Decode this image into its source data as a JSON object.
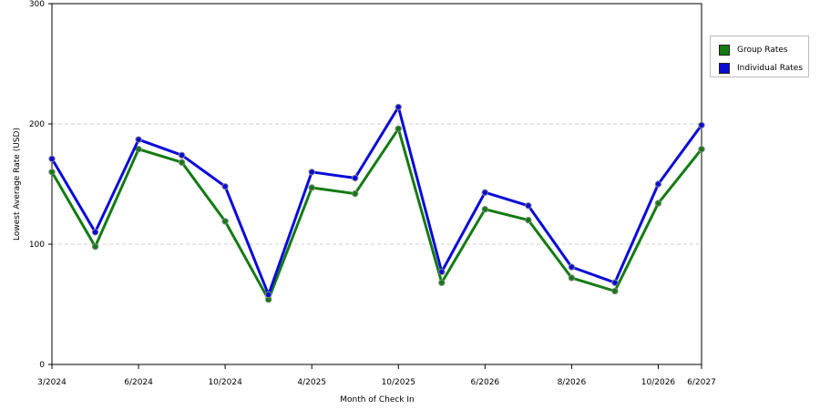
{
  "chart_data": {
    "type": "line",
    "xlabel": "Month of Check In",
    "ylabel": "Lowest Average Rate (USD)",
    "ylim": [
      0,
      300
    ],
    "yticks": [
      0,
      100,
      200,
      300
    ],
    "grid": "horizontal dashed",
    "legend_position": "right",
    "x_tick_labels": [
      {
        "index": 0,
        "label": "3/2024"
      },
      {
        "index": 2,
        "label": "6/2024"
      },
      {
        "index": 4,
        "label": "10/2024"
      },
      {
        "index": 6,
        "label": "4/2025"
      },
      {
        "index": 8,
        "label": "10/2025"
      },
      {
        "index": 10,
        "label": "6/2026"
      },
      {
        "index": 12,
        "label": "8/2026"
      },
      {
        "index": 14,
        "label": "10/2026"
      },
      {
        "index": 15,
        "label": "6/2027"
      }
    ],
    "point_count": 16,
    "series": [
      {
        "name": "Group Rates",
        "color": "#137b13",
        "values": [
          160,
          98,
          179,
          168,
          119,
          54,
          147,
          142,
          196,
          68,
          129,
          120,
          72,
          61,
          134,
          179
        ]
      },
      {
        "name": "Individual Rates",
        "color": "#0a0ad8",
        "values": [
          171,
          110,
          187,
          174,
          148,
          58,
          160,
          155,
          214,
          77,
          143,
          132,
          81,
          68,
          150,
          199
        ]
      }
    ]
  },
  "legend": {
    "items": [
      {
        "label": "Group Rates",
        "color": "#137b13"
      },
      {
        "label": "Individual Rates",
        "color": "#0a0ad8"
      }
    ]
  }
}
